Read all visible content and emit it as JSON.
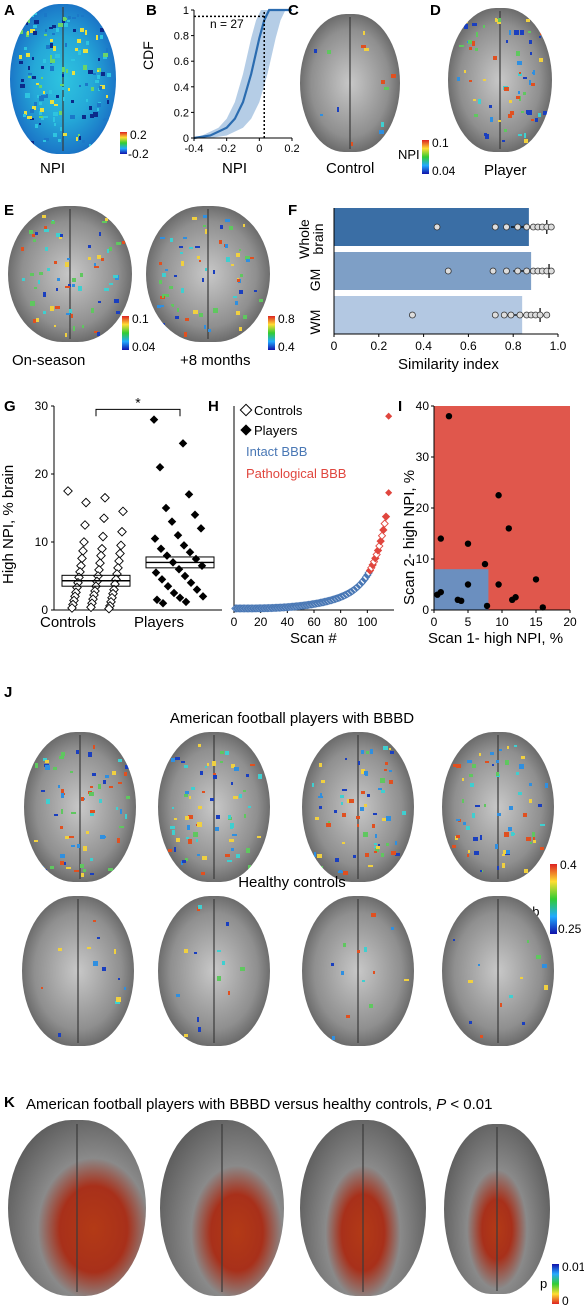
{
  "panels": {
    "A": {
      "letter": "A",
      "label": "NPI",
      "cbar_max": "0.2",
      "cbar_min": "-0.2"
    },
    "B": {
      "letter": "B",
      "ylabel": "CDF",
      "xlabel": "NPI",
      "annotation": "n = 27",
      "xticks": [
        "-0.4",
        "-0.2",
        "0",
        "0.2"
      ],
      "yticks": [
        "0",
        "0.2",
        "0.4",
        "0.6",
        "0.8",
        "1"
      ]
    },
    "C": {
      "letter": "C",
      "label": "Control"
    },
    "D": {
      "letter": "D",
      "label": "Player",
      "cbar_title": "NPI",
      "cbar_max": "0.1",
      "cbar_min": "0.04"
    },
    "E": {
      "letter": "E",
      "label_left": "On-season",
      "label_right": "+8 months",
      "cbar1_max": "0.1",
      "cbar1_min": "0.04",
      "cbar2_max": "0.8",
      "cbar2_min": "0.4"
    },
    "F": {
      "letter": "F",
      "xlabel": "Similarity index",
      "xticks": [
        "0",
        "0.2",
        "0.4",
        "0.6",
        "0.8",
        "1.0"
      ],
      "categories": [
        "Whole brain",
        "GM",
        "WM"
      ],
      "cat_line1": [
        "Whole",
        "GM",
        "WM"
      ],
      "cat_line2": [
        "brain",
        "",
        ""
      ]
    },
    "G": {
      "letter": "G",
      "ylabel": "High NPI, % brain",
      "categories": [
        "Controls",
        "Players"
      ],
      "yticks": [
        "0",
        "10",
        "20",
        "30"
      ],
      "sig": "*"
    },
    "H": {
      "letter": "H",
      "xlabel": "Scan #",
      "xticks": [
        "0",
        "20",
        "40",
        "60",
        "80",
        "100"
      ],
      "yticks": [
        "0",
        "10",
        "20",
        "30",
        "40"
      ],
      "legend": [
        "Controls",
        "Players",
        "Intact BBB",
        "Pathological BBB"
      ]
    },
    "I": {
      "letter": "I",
      "xlabel": "Scan 1- high NPI, %",
      "ylabel": "Scan 2- high NPI, %",
      "xticks": [
        "0",
        "5",
        "10",
        "15",
        "20"
      ],
      "yticks": [
        "0",
        "10",
        "20",
        "30",
        "40"
      ]
    },
    "J": {
      "letter": "J",
      "title_top": "American football players with BBBD",
      "title_bottom": "Healthy controls",
      "cbar_title": "Prob",
      "cbar_max": "0.4",
      "cbar_min": "0.25"
    },
    "K": {
      "letter": "K",
      "title": "American football players with BBBD versus healthy controls,",
      "title_p": "P",
      "title_tail": " < 0.01",
      "cbar_title": "p",
      "cbar_max": "0.01",
      "cbar_min": "0"
    }
  },
  "chart_data": [
    {
      "panel": "B",
      "type": "line",
      "title": "",
      "xlabel": "NPI",
      "ylabel": "CDF",
      "xlim": [
        -0.4,
        0.2
      ],
      "ylim": [
        0,
        1
      ],
      "annotation": "n = 27",
      "series": [
        {
          "values": [
            [
              -0.4,
              0.0
            ],
            [
              -0.3,
              0.02
            ],
            [
              -0.2,
              0.08
            ],
            [
              -0.15,
              0.15
            ],
            [
              -0.1,
              0.28
            ],
            [
              -0.05,
              0.5
            ],
            [
              0,
              0.78
            ],
            [
              0.03,
              0.92
            ],
            [
              0.06,
              1.0
            ],
            [
              0.2,
              1.0
            ]
          ]
        }
      ]
    },
    {
      "panel": "F",
      "type": "bar",
      "orientation": "horizontal",
      "xlabel": "Similarity index",
      "xlim": [
        0,
        1
      ],
      "categories": [
        "Whole brain",
        "GM",
        "WM"
      ],
      "values": [
        0.87,
        0.88,
        0.84
      ],
      "colors": [
        "#3a6ea5",
        "#7e9fc6",
        "#b3c8e2"
      ],
      "points": [
        [
          0.46,
          0.72,
          0.77,
          0.82,
          0.86,
          0.89,
          0.91,
          0.93,
          0.95,
          0.97
        ],
        [
          0.51,
          0.71,
          0.77,
          0.82,
          0.86,
          0.89,
          0.91,
          0.93,
          0.95,
          0.97
        ],
        [
          0.35,
          0.72,
          0.76,
          0.79,
          0.83,
          0.86,
          0.88,
          0.9,
          0.92,
          0.95
        ]
      ]
    },
    {
      "panel": "G",
      "type": "scatter",
      "ylabel": "High NPI, % brain",
      "ylim": [
        0,
        30
      ],
      "categories": [
        "Controls",
        "Players"
      ],
      "means": [
        4.3,
        7.0
      ],
      "controls": [
        17.5,
        16.5,
        15.8,
        14.5,
        13.5,
        12.5,
        11.5,
        10.8,
        10.0,
        9.5,
        9.0,
        8.7,
        8.3,
        8.0,
        7.6,
        7.2,
        6.9,
        6.5,
        6.2,
        5.9,
        5.6,
        5.3,
        5.0,
        4.8,
        4.5,
        4.2,
        4.0,
        3.8,
        3.5,
        3.3,
        3.0,
        2.8,
        2.6,
        2.4,
        2.2,
        2.0,
        1.8,
        1.6,
        1.4,
        1.2,
        1.0,
        0.8,
        0.6,
        0.4,
        0.3,
        0.2
      ],
      "players": [
        28.0,
        24.5,
        21.0,
        17.0,
        15.0,
        14.0,
        13.0,
        12.0,
        11.0,
        10.5,
        9.5,
        9.0,
        8.5,
        8.0,
        7.5,
        7.0,
        6.5,
        6.0,
        5.5,
        5.0,
        4.5,
        4.0,
        3.5,
        3.0,
        2.5,
        2.0,
        1.8,
        1.5,
        1.2,
        1.0
      ]
    },
    {
      "panel": "H",
      "type": "scatter",
      "xlabel": "Scan #",
      "xlim": [
        0,
        120
      ],
      "ylim": [
        0,
        40
      ],
      "series": [
        {
          "name": "Intact BBB",
          "color": "#4a78b5"
        },
        {
          "name": "Pathological BBB",
          "color": "#e0463e"
        }
      ],
      "outliers": [
        [
          116,
          38
        ],
        [
          116,
          23
        ]
      ]
    },
    {
      "panel": "I",
      "type": "scatter",
      "xlabel": "Scan 1- high NPI, %",
      "ylabel": "Scan 2- high NPI, %",
      "xlim": [
        0,
        20
      ],
      "ylim": [
        0,
        40
      ],
      "points": [
        [
          2.2,
          38
        ],
        [
          9.5,
          22.5
        ],
        [
          11,
          16
        ],
        [
          1,
          14
        ],
        [
          5,
          13
        ],
        [
          7.5,
          9
        ],
        [
          9.5,
          5
        ],
        [
          15,
          6
        ],
        [
          0.5,
          3
        ],
        [
          1,
          3.5
        ],
        [
          3.5,
          2
        ],
        [
          4,
          1.8
        ],
        [
          5,
          5
        ],
        [
          7.8,
          0.8
        ],
        [
          11.5,
          2
        ],
        [
          12,
          2.5
        ],
        [
          16,
          0.5
        ]
      ]
    }
  ]
}
